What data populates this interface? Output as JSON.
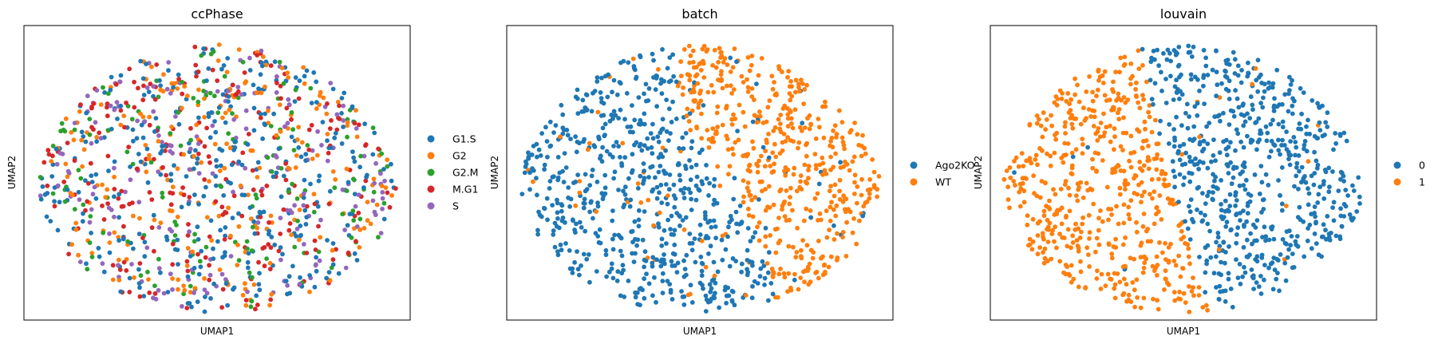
{
  "chart_data": [
    {
      "type": "scatter",
      "title": "ccPhase",
      "xlabel": "UMAP1",
      "ylabel": "UMAP2",
      "grid": false,
      "ticks": false,
      "legend_placement": "right",
      "legend": [
        {
          "label": "G1.S",
          "color": "#1f77b4"
        },
        {
          "label": "G2",
          "color": "#ff7f0e"
        },
        {
          "label": "G2.M",
          "color": "#2ca02c"
        },
        {
          "label": "M.G1",
          "color": "#d62728"
        },
        {
          "label": "S",
          "color": "#9467bd"
        }
      ],
      "distribution": "mixed",
      "seed": 11
    },
    {
      "type": "scatter",
      "title": "batch",
      "xlabel": "UMAP1",
      "ylabel": "UMAP2",
      "grid": false,
      "ticks": false,
      "legend_placement": "right",
      "legend": [
        {
          "label": "Ago2KO",
          "color": "#1f77b4"
        },
        {
          "label": "WT",
          "color": "#ff7f0e"
        }
      ],
      "distribution": "split-upper-right",
      "seed": 23
    },
    {
      "type": "scatter",
      "title": "louvain",
      "xlabel": "UMAP1",
      "ylabel": "UMAP2",
      "grid": false,
      "ticks": false,
      "legend_placement": "right",
      "legend": [
        {
          "label": "0",
          "color": "#1f77b4"
        },
        {
          "label": "1",
          "color": "#ff7f0e"
        }
      ],
      "distribution": "split-left",
      "seed": 37
    }
  ]
}
